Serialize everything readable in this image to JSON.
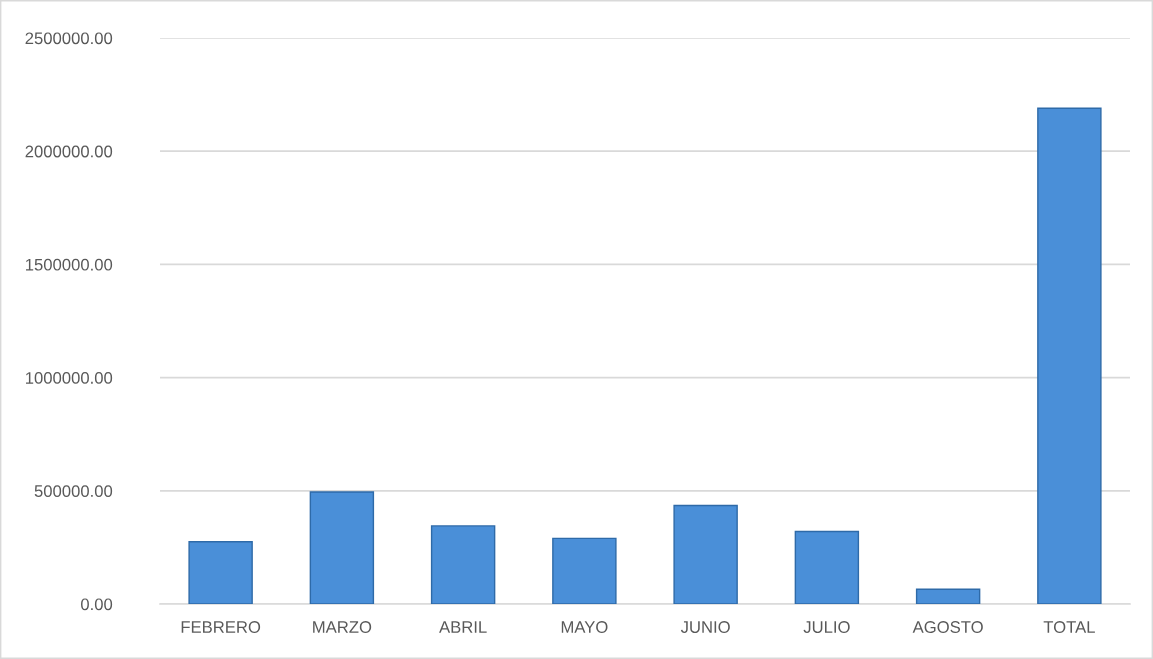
{
  "chart_data": {
    "type": "bar",
    "categories": [
      "FEBRERO",
      "MARZO",
      "ABRIL",
      "MAYO",
      "JUNIO",
      "JULIO",
      "AGOSTO",
      "TOTAL"
    ],
    "values": [
      275000,
      495000,
      345000,
      290000,
      435000,
      320000,
      65000,
      2190000
    ],
    "color": "#4a8fd8",
    "ylim": [
      0,
      2500000
    ],
    "yticks": [
      {
        "value": 0,
        "label": "0.00"
      },
      {
        "value": 500000,
        "label": "500000.00"
      },
      {
        "value": 1000000,
        "label": "1000000.00"
      },
      {
        "value": 1500000,
        "label": "1500000.00"
      },
      {
        "value": 2000000,
        "label": "2000000.00"
      },
      {
        "value": 2500000,
        "label": "2500000.00"
      }
    ],
    "grid": "y",
    "legend": false
  }
}
